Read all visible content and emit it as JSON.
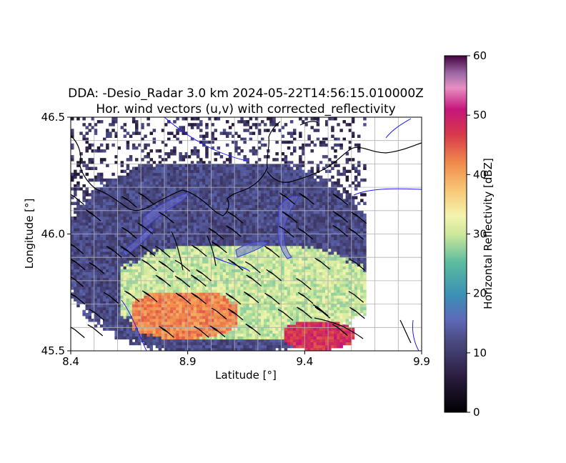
{
  "chart_data": {
    "type": "heatmap",
    "title_line1": "DDA: -Desio_Radar 3.0 km 2024-05-22T14:56:15.010000Z",
    "title_line2": "Hor. wind vectors (u,v) with corrected_reflectivity",
    "xlabel": "Latitude [°]",
    "ylabel": "Longitude [°]",
    "xlim": [
      8.4,
      9.9
    ],
    "ylim": [
      45.5,
      46.5
    ],
    "x_ticks": [
      8.4,
      8.9,
      9.4,
      9.9
    ],
    "x_tick_labels": [
      "8.4",
      "8.9",
      "9.4",
      "9.9"
    ],
    "y_ticks": [
      45.5,
      46.0,
      46.5
    ],
    "y_tick_labels": [
      "45.5",
      "46.0",
      "46.5"
    ],
    "grid": true,
    "colormap": "Spectral_r-like",
    "colorbar": {
      "label": "Horizontal Reflectivity [dBZ]",
      "range": [
        0,
        60
      ],
      "ticks": [
        0,
        10,
        20,
        30,
        40,
        50,
        60
      ],
      "tick_labels": [
        "0",
        "10",
        "20",
        "30",
        "40",
        "50",
        "60"
      ]
    },
    "overlays": [
      "wind barbs (u,v)",
      "country borders (black)",
      "rivers and lakes (blue)"
    ],
    "reflectivity_regions": [
      {
        "x": [
          8.4,
          9.65
        ],
        "y": [
          45.5,
          46.3
        ],
        "dbz": 12
      },
      {
        "x": [
          8.6,
          9.65
        ],
        "y": [
          45.55,
          45.95
        ],
        "dbz": 30
      },
      {
        "x": [
          8.65,
          9.1
        ],
        "y": [
          45.55,
          45.75
        ],
        "dbz": 42
      },
      {
        "x": [
          9.3,
          9.6
        ],
        "y": [
          45.5,
          45.62
        ],
        "dbz": 48
      }
    ],
    "wind_barbs_sample": [
      {
        "x": 8.75,
        "y": 46.0,
        "direction": "NW",
        "speed_kt": 15
      },
      {
        "x": 9.0,
        "y": 45.8,
        "direction": "NW",
        "speed_kt": 20
      },
      {
        "x": 9.3,
        "y": 45.8,
        "direction": "NW",
        "speed_kt": 20
      },
      {
        "x": 9.5,
        "y": 45.65,
        "direction": "NW",
        "speed_kt": 25
      }
    ]
  }
}
